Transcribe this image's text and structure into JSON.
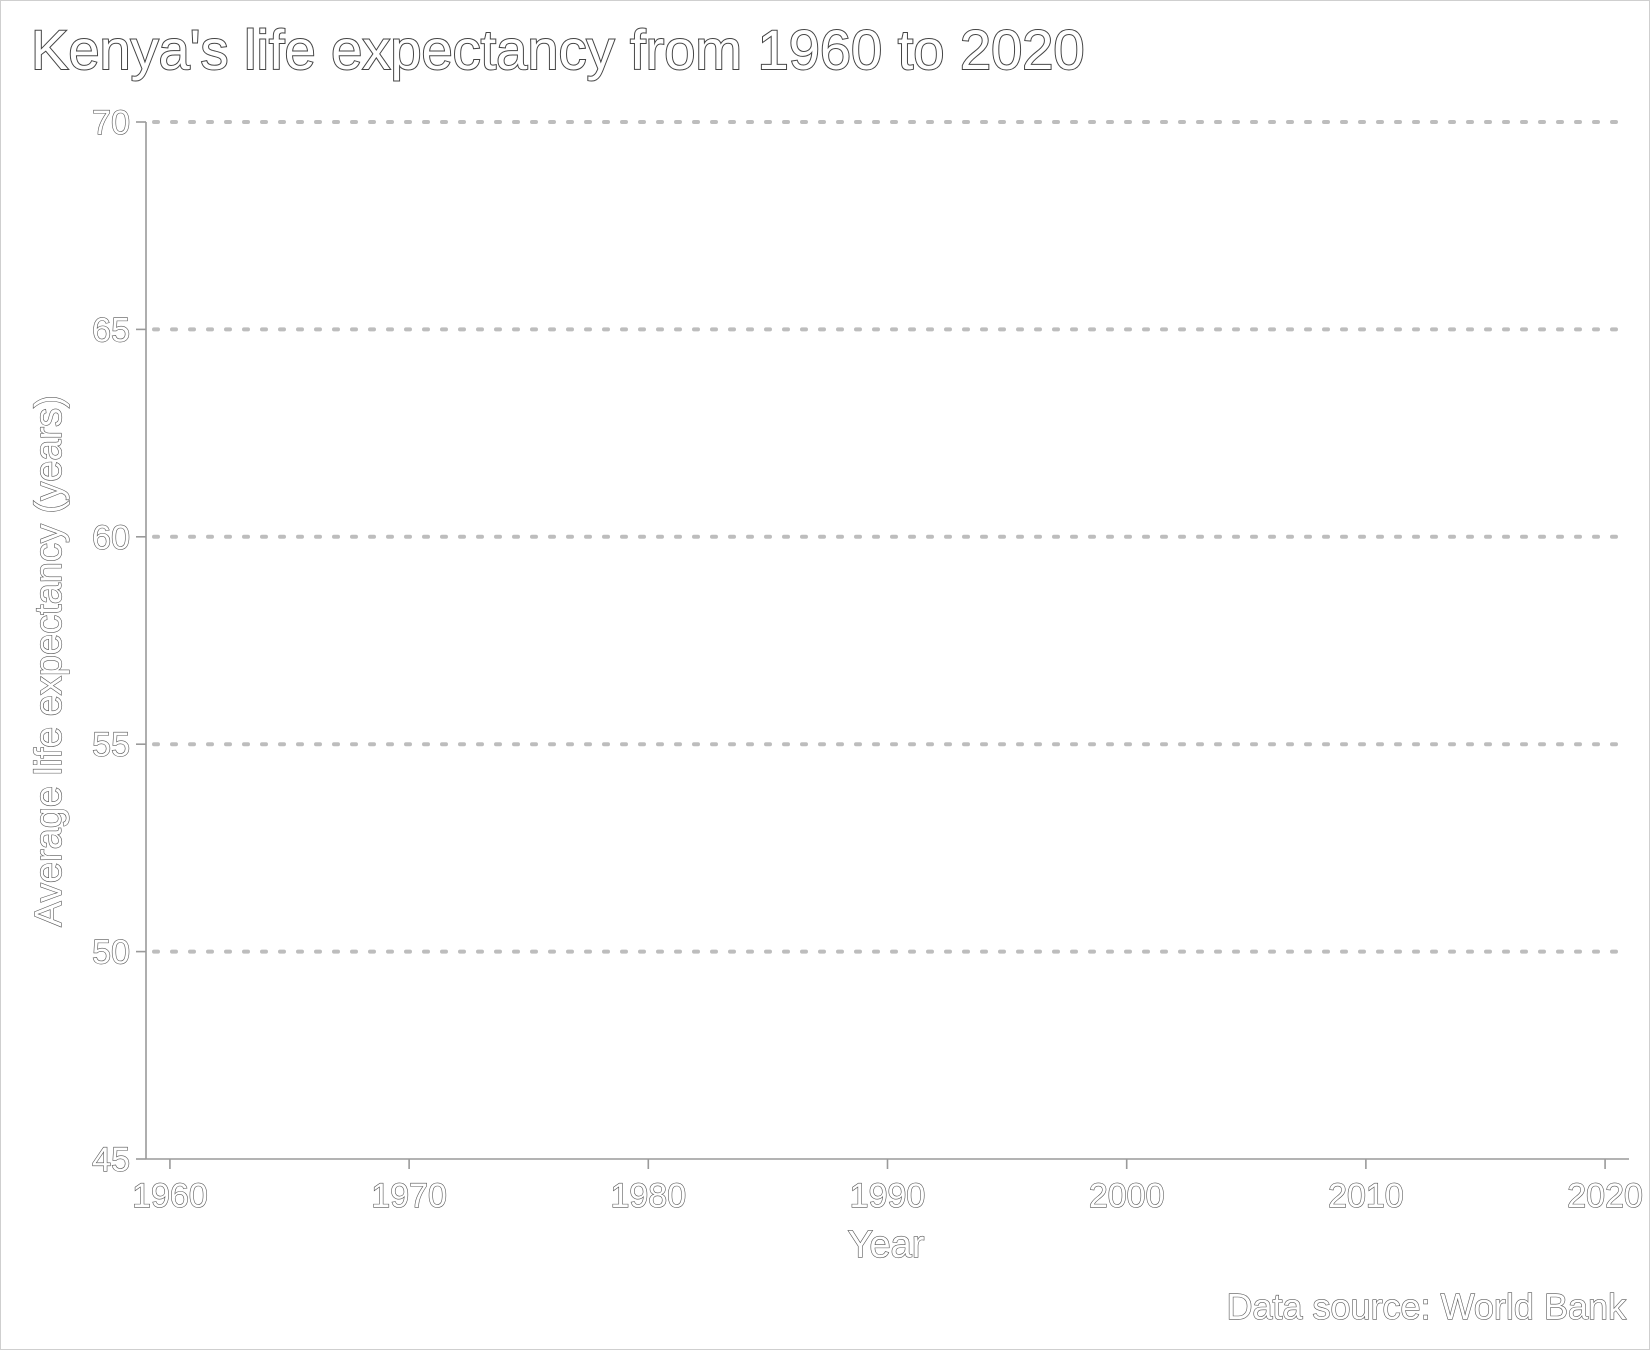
{
  "chart_data": {
    "type": "line",
    "title": "Kenya's life expectancy from 1960 to 2020",
    "xlabel": "Year",
    "ylabel": "Average life expectancy (years)",
    "source": "Data source: World Bank",
    "xlim": [
      1959,
      2021
    ],
    "ylim": [
      45,
      70
    ],
    "x_ticks": [
      "1960",
      "1970",
      "1980",
      "1990",
      "2000",
      "2010",
      "2020"
    ],
    "y_ticks": [
      "45",
      "50",
      "55",
      "60",
      "65",
      "70"
    ],
    "grid": "horizontal dotted",
    "series": []
  }
}
